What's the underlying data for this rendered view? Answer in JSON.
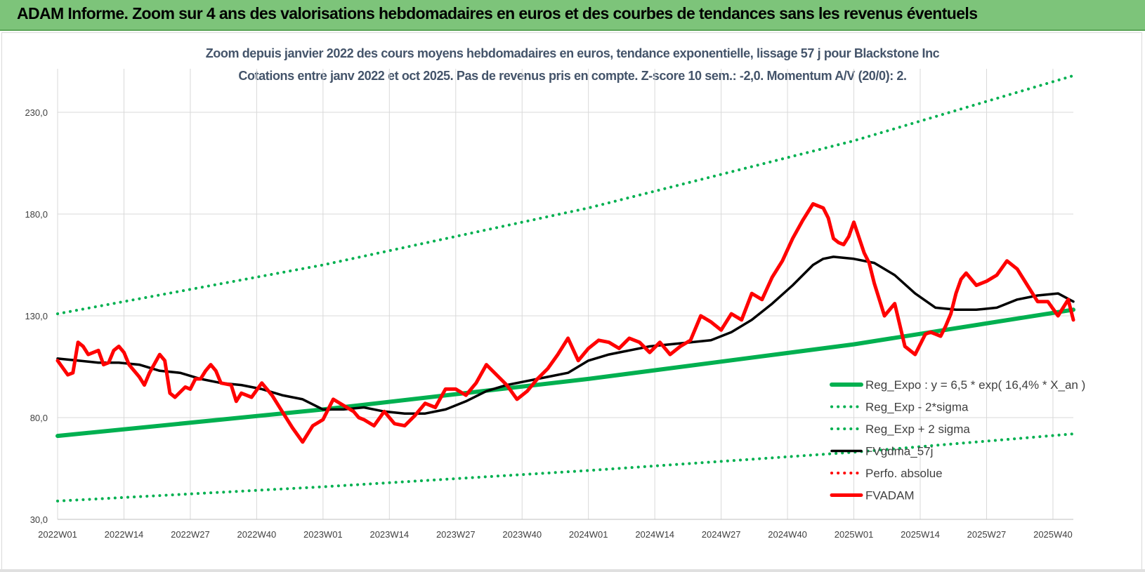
{
  "header": {
    "title": "ADAM Informe. Zoom sur 4 ans des valorisations hebdomadaires en euros et des courbes de tendances sans les revenus éventuels"
  },
  "colors": {
    "banner": "#7dc47a",
    "reg_expo": "#00b050",
    "fvadam": "#ff0000",
    "fvgdma": "#000000",
    "perfo": "#ff0000",
    "grid": "#d9d9d9",
    "title_text": "#44546a"
  },
  "chart_data": {
    "type": "line",
    "title": "Zoom depuis janvier 2022 des cours moyens hebdomadaires en euros, tendance exponentielle, lissage 57 j pour Blackstone Inc",
    "subtitle": "Cotations entre janv 2022 et oct 2025. Pas de revenus pris en compte. Z-score 10 sem.: -2,0.  Momentum A/V (20/0): 2.",
    "xlabel": "",
    "ylabel": "",
    "ylim": [
      30,
      250
    ],
    "yticks": [
      "30,0",
      "80,0",
      "130,0",
      "180,0",
      "230,0"
    ],
    "ytick_values": [
      30,
      80,
      130,
      180,
      230
    ],
    "xticks": [
      "2022W01",
      "2022W14",
      "2022W27",
      "2022W40",
      "2023W01",
      "2023W14",
      "2023W27",
      "2023W40",
      "2024W01",
      "2024W14",
      "2024W27",
      "2024W40",
      "2025W01",
      "2025W14",
      "2025W27",
      "2025W40"
    ],
    "xtick_index": [
      0,
      13,
      26,
      39,
      52,
      65,
      78,
      91,
      104,
      117,
      130,
      143,
      156,
      169,
      182,
      195
    ],
    "x_count": 200,
    "grid": true,
    "legend_position": "bottom-right",
    "series": [
      {
        "name": "Reg_Expo : y = 6,5 * exp( 16,4% * X_an )",
        "style": "solid-thick",
        "color": "#00b050",
        "x": [
          0,
          52,
          104,
          156,
          199
        ],
        "values": [
          71,
          84,
          99,
          116,
          133
        ]
      },
      {
        "name": "Reg_Exp - 2*sigma",
        "style": "dotted",
        "color": "#00b050",
        "x": [
          0,
          52,
          104,
          156,
          199
        ],
        "values": [
          39,
          46,
          54,
          63,
          72
        ]
      },
      {
        "name": "Reg_Exp + 2 sigma",
        "style": "dotted",
        "color": "#00b050",
        "x": [
          0,
          52,
          104,
          156,
          199
        ],
        "values": [
          131,
          155,
          183,
          216,
          248
        ]
      },
      {
        "name": "FVgdma_57j",
        "style": "solid",
        "color": "#000000",
        "x": [
          0,
          4,
          8,
          12,
          16,
          20,
          24,
          28,
          32,
          36,
          40,
          44,
          48,
          52,
          56,
          60,
          64,
          68,
          72,
          76,
          80,
          84,
          88,
          92,
          96,
          100,
          104,
          108,
          112,
          116,
          120,
          124,
          128,
          132,
          136,
          140,
          144,
          148,
          150,
          152,
          156,
          160,
          164,
          168,
          172,
          176,
          180,
          184,
          188,
          192,
          196,
          199
        ],
        "values": [
          109,
          108,
          107,
          107,
          106,
          103,
          102,
          99,
          97,
          96,
          94,
          91,
          89,
          84,
          84,
          85,
          83,
          82,
          82,
          84,
          88,
          93,
          96,
          98,
          100,
          102,
          108,
          111,
          113,
          115,
          116,
          117,
          118,
          122,
          128,
          136,
          145,
          155,
          158,
          159,
          158,
          156,
          150,
          141,
          134,
          133,
          133,
          134,
          138,
          140,
          141,
          137
        ]
      },
      {
        "name": "Perfo. absolue",
        "style": "dotted",
        "color": "#ff0000",
        "x": [],
        "values": []
      },
      {
        "name": "FVADAM",
        "style": "solid-thick",
        "color": "#ff0000",
        "x": [
          0,
          2,
          3,
          4,
          5,
          6,
          8,
          9,
          10,
          11,
          12,
          13,
          14,
          16,
          17,
          18,
          20,
          21,
          22,
          23,
          25,
          26,
          27,
          28,
          29,
          30,
          31,
          32,
          34,
          35,
          36,
          38,
          40,
          42,
          44,
          46,
          48,
          50,
          52,
          54,
          56,
          58,
          59,
          60,
          62,
          64,
          66,
          68,
          70,
          72,
          74,
          76,
          78,
          80,
          82,
          84,
          86,
          88,
          90,
          92,
          94,
          96,
          98,
          100,
          102,
          104,
          106,
          108,
          110,
          112,
          114,
          116,
          118,
          120,
          122,
          124,
          126,
          128,
          130,
          132,
          134,
          136,
          138,
          140,
          142,
          144,
          146,
          148,
          150,
          151,
          152,
          153,
          154,
          155,
          156,
          158,
          159,
          160,
          162,
          164,
          166,
          168,
          169,
          170,
          171,
          172,
          173,
          174,
          175,
          176,
          177,
          178,
          180,
          182,
          184,
          186,
          188,
          190,
          192,
          194,
          196,
          198,
          199
        ],
        "values": [
          108,
          101,
          102,
          117,
          115,
          111,
          113,
          106,
          107,
          113,
          115,
          112,
          106,
          100,
          96,
          102,
          111,
          108,
          92,
          90,
          95,
          94,
          99,
          99,
          103,
          106,
          103,
          97,
          96,
          88,
          92,
          90,
          97,
          91,
          83,
          75,
          68,
          76,
          79,
          89,
          86,
          83,
          80,
          79,
          76,
          83,
          77,
          76,
          81,
          87,
          85,
          94,
          94,
          91,
          97,
          106,
          101,
          96,
          89,
          93,
          99,
          104,
          111,
          119,
          108,
          114,
          118,
          117,
          114,
          119,
          117,
          112,
          117,
          111,
          115,
          118,
          130,
          127,
          123,
          131,
          128,
          141,
          138,
          149,
          157,
          168,
          177,
          185,
          183,
          178,
          168,
          166,
          165,
          169,
          176,
          161,
          156,
          146,
          130,
          136,
          115,
          111,
          116,
          121,
          122,
          121,
          120,
          125,
          131,
          141,
          148,
          151,
          145,
          147,
          150,
          157,
          153,
          145,
          137,
          137,
          130,
          138,
          128
        ]
      }
    ]
  }
}
